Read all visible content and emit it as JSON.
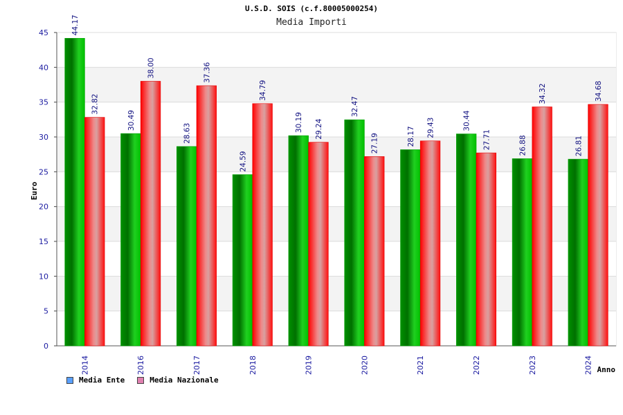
{
  "chart_data": {
    "type": "bar",
    "title": "U.S.D. SOIS (c.f.80005000254)",
    "subtitle": "Media Importi",
    "xlabel": "Anno",
    "ylabel": "Euro",
    "ylim": [
      0,
      45
    ],
    "yticks": [
      0,
      5,
      10,
      15,
      20,
      25,
      30,
      35,
      40,
      45
    ],
    "categories": [
      "2014",
      "2016",
      "2017",
      "2018",
      "2019",
      "2020",
      "2021",
      "2022",
      "2023",
      "2024"
    ],
    "series": [
      {
        "name": "Media Ente",
        "color": "#00c000",
        "legend_color": "#5aa0ff",
        "values": [
          44.17,
          30.49,
          28.63,
          24.59,
          30.19,
          32.47,
          28.17,
          30.44,
          26.88,
          26.81
        ]
      },
      {
        "name": "Media Nazionale",
        "color": "#ff2020",
        "legend_color": "#e080b0",
        "values": [
          32.82,
          38.0,
          37.36,
          34.79,
          29.24,
          27.19,
          29.43,
          27.71,
          34.32,
          34.68
        ]
      }
    ],
    "grid": true,
    "legend_position": "bottom-left"
  }
}
